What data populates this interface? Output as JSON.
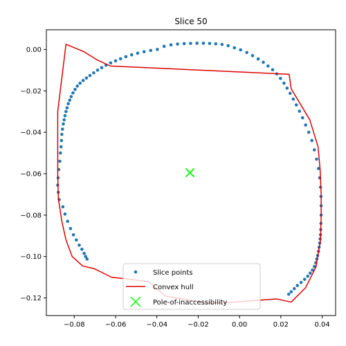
{
  "chart_data": {
    "type": "scatter",
    "title": "Slice 50",
    "xlabel": "",
    "ylabel": "",
    "xlim": [
      -0.0935,
      0.0465
    ],
    "ylim": [
      -0.1285,
      0.0095
    ],
    "x_ticks": [
      -0.08,
      -0.06,
      -0.04,
      -0.02,
      0.0,
      0.02,
      0.04
    ],
    "x_tick_labels": [
      "−0.08",
      "−0.06",
      "−0.04",
      "−0.02",
      "0.00",
      "0.02",
      "0.04"
    ],
    "y_ticks": [
      0.0,
      -0.02,
      -0.04,
      -0.06,
      -0.08,
      -0.1,
      -0.12
    ],
    "y_tick_labels": [
      "0.00",
      "−0.02",
      "−0.04",
      "−0.06",
      "−0.08",
      "−0.10",
      "−0.12"
    ],
    "grid": false,
    "legend": {
      "placement": "bottom-center",
      "entries": [
        "Slice points",
        "Convex hull",
        "Pole-of-inaccessibility"
      ]
    },
    "series": [
      {
        "name": "Slice points",
        "kind": "scatter",
        "color": "#1f77b4",
        "x": [
          -0.0875,
          -0.0878,
          -0.088,
          -0.0877,
          -0.0873,
          -0.087,
          -0.0867,
          -0.0864,
          -0.0862,
          -0.086,
          -0.0857,
          -0.0853,
          -0.0849,
          -0.0845,
          -0.084,
          -0.0835,
          -0.0829,
          -0.0822,
          -0.0815,
          -0.0806,
          -0.0796,
          -0.0785,
          -0.0772,
          -0.0757,
          -0.0741,
          -0.0724,
          -0.0706,
          -0.0687,
          -0.0667,
          -0.0646,
          -0.0624,
          -0.06,
          -0.0576,
          -0.055,
          -0.0522,
          -0.0493,
          -0.0462,
          -0.043,
          -0.0398,
          -0.0365,
          -0.0332,
          -0.03,
          -0.0268,
          -0.0237,
          -0.0206,
          -0.0175,
          -0.0145,
          -0.0115,
          -0.0085,
          -0.0055,
          -0.0025,
          0.0005,
          0.0035,
          0.0063,
          0.009,
          0.0115,
          0.0138,
          0.016,
          0.018,
          0.0198,
          0.0215,
          0.023,
          0.0245,
          0.026,
          0.0275,
          0.029,
          0.0305,
          0.032,
          0.0335,
          0.035,
          0.0362,
          0.0373,
          0.0382,
          0.0388,
          0.0392,
          0.0394,
          0.0395,
          0.0395,
          0.0394,
          0.0393,
          0.0392,
          0.039,
          0.0388,
          0.0385,
          0.0382,
          0.0378,
          0.0374,
          0.0369,
          0.0362,
          0.0353,
          0.0342,
          0.033,
          0.0315,
          0.0298,
          0.028,
          0.0265,
          0.025,
          0.0238,
          -0.0855,
          -0.0845,
          -0.0832,
          -0.0818,
          -0.0804,
          -0.079,
          -0.0776,
          -0.0763,
          -0.0752,
          -0.0745,
          -0.0738
        ],
        "y": [
          -0.058,
          -0.062,
          -0.0655,
          -0.069,
          -0.0725,
          -0.054,
          -0.05,
          -0.047,
          -0.044,
          -0.041,
          -0.0385,
          -0.036,
          -0.034,
          -0.032,
          -0.03,
          -0.0282,
          -0.0262,
          -0.0245,
          -0.0228,
          -0.021,
          -0.0193,
          -0.0177,
          -0.0163,
          -0.015,
          -0.0138,
          -0.0126,
          -0.0113,
          -0.01,
          -0.0088,
          -0.0076,
          -0.0065,
          -0.0055,
          -0.0045,
          -0.0035,
          -0.0026,
          -0.0018,
          -0.0011,
          -0.0005,
          0.0,
          0.0015,
          0.0022,
          0.0026,
          0.0028,
          0.0029,
          0.003,
          0.003,
          0.0029,
          0.0027,
          0.0024,
          0.0018,
          0.0008,
          -0.0002,
          -0.0015,
          -0.003,
          -0.0046,
          -0.0062,
          -0.008,
          -0.0098,
          -0.0118,
          -0.014,
          -0.0163,
          -0.0187,
          -0.0212,
          -0.024,
          -0.0268,
          -0.0298,
          -0.033,
          -0.0365,
          -0.04,
          -0.044,
          -0.0485,
          -0.053,
          -0.0575,
          -0.062,
          -0.0665,
          -0.071,
          -0.0755,
          -0.08,
          -0.084,
          -0.087,
          -0.0895,
          -0.0915,
          -0.0935,
          -0.0955,
          -0.0975,
          -0.0995,
          -0.1012,
          -0.103,
          -0.1048,
          -0.1065,
          -0.108,
          -0.1095,
          -0.111,
          -0.1125,
          -0.114,
          -0.1155,
          -0.117,
          -0.1182,
          -0.076,
          -0.0795,
          -0.083,
          -0.0865,
          -0.0895,
          -0.092,
          -0.0945,
          -0.0965,
          -0.0985,
          -0.1,
          -0.1012
        ]
      },
      {
        "name": "Convex hull",
        "kind": "line",
        "color": "#dc0000",
        "x": [
          -0.088,
          -0.0877,
          -0.086,
          -0.084,
          -0.081,
          -0.076,
          -0.07,
          -0.062,
          -0.053,
          -0.044,
          -0.036,
          -0.025,
          -0.017,
          -0.008,
          0.0,
          0.008,
          0.018,
          0.025,
          0.032,
          0.037,
          0.0392,
          0.0395,
          0.0395,
          0.039,
          0.038,
          0.034,
          0.025,
          0.024,
          -0.0625,
          -0.069,
          -0.0755,
          -0.084,
          -0.088
        ],
        "y": [
          -0.06,
          -0.072,
          -0.083,
          -0.092,
          -0.1,
          -0.1045,
          -0.106,
          -0.11,
          -0.111,
          -0.1122,
          -0.119,
          -0.121,
          -0.1225,
          -0.1223,
          -0.1218,
          -0.1212,
          -0.1205,
          -0.122,
          -0.115,
          -0.105,
          -0.092,
          -0.08,
          -0.07,
          -0.058,
          -0.047,
          -0.034,
          -0.019,
          -0.012,
          -0.008,
          -0.005,
          -0.001,
          0.0025,
          -0.03
        ]
      },
      {
        "name": "Pole-of-inaccessibility",
        "kind": "marker",
        "color": "#00ff00",
        "x": [
          -0.024
        ],
        "y": [
          -0.0595
        ]
      }
    ]
  }
}
